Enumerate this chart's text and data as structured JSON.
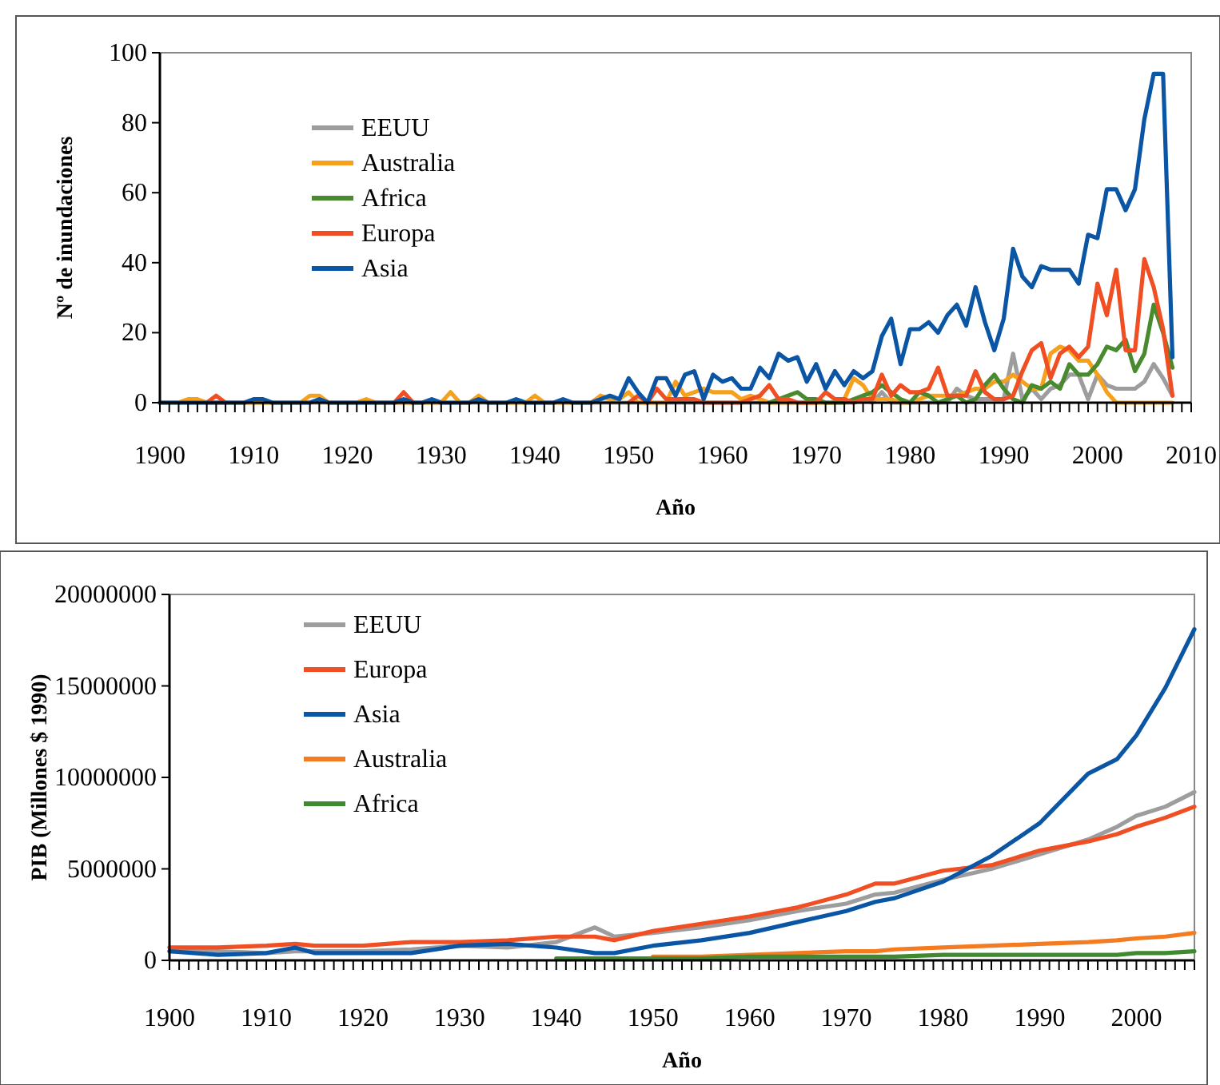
{
  "chart_data": [
    {
      "type": "line",
      "xlabel": "Año",
      "ylabel": "Nº de inundaciones",
      "legend": "top left",
      "grid": false,
      "marker": "none",
      "line_style": "solid",
      "x": [
        1900,
        1901,
        1902,
        1903,
        1904,
        1905,
        1906,
        1907,
        1908,
        1909,
        1910,
        1911,
        1912,
        1913,
        1914,
        1915,
        1916,
        1917,
        1918,
        1919,
        1920,
        1921,
        1922,
        1923,
        1924,
        1925,
        1926,
        1927,
        1928,
        1929,
        1930,
        1931,
        1932,
        1933,
        1934,
        1935,
        1936,
        1937,
        1938,
        1939,
        1940,
        1941,
        1942,
        1943,
        1944,
        1945,
        1946,
        1947,
        1948,
        1949,
        1950,
        1951,
        1952,
        1953,
        1954,
        1955,
        1956,
        1957,
        1958,
        1959,
        1960,
        1961,
        1962,
        1963,
        1964,
        1965,
        1966,
        1967,
        1968,
        1969,
        1970,
        1971,
        1972,
        1973,
        1974,
        1975,
        1976,
        1977,
        1978,
        1979,
        1980,
        1981,
        1982,
        1983,
        1984,
        1985,
        1986,
        1987,
        1988,
        1989,
        1990,
        1991,
        1992,
        1993,
        1994,
        1995,
        1996,
        1997,
        1998,
        1999,
        2000,
        2001,
        2002,
        2003,
        2004,
        2005,
        2006,
        2007,
        2008
      ],
      "xlim": [
        1900,
        2010
      ],
      "xticks": [
        1900,
        {
          "value": 1901,
          "label": null
        },
        {
          "value": 1902,
          "label": null
        },
        {
          "value": 1903,
          "label": null
        },
        {
          "value": 1904,
          "label": null
        },
        {
          "value": 1905,
          "label": null
        },
        {
          "value": 1906,
          "label": null
        },
        {
          "value": 1907,
          "label": null
        },
        {
          "value": 1908,
          "label": null
        },
        {
          "value": 1909,
          "label": null
        },
        1910,
        {
          "value": 1911,
          "label": null
        },
        {
          "value": 1912,
          "label": null
        },
        {
          "value": 1913,
          "label": null
        },
        {
          "value": 1914,
          "label": null
        },
        {
          "value": 1915,
          "label": null
        },
        {
          "value": 1916,
          "label": null
        },
        {
          "value": 1917,
          "label": null
        },
        {
          "value": 1918,
          "label": null
        },
        {
          "value": 1919,
          "label": null
        },
        1920,
        {
          "value": 1921,
          "label": null
        },
        {
          "value": 1922,
          "label": null
        },
        {
          "value": 1923,
          "label": null
        },
        {
          "value": 1924,
          "label": null
        },
        {
          "value": 1925,
          "label": null
        },
        {
          "value": 1926,
          "label": null
        },
        {
          "value": 1927,
          "label": null
        },
        {
          "value": 1928,
          "label": null
        },
        {
          "value": 1929,
          "label": null
        },
        1930,
        {
          "value": 1931,
          "label": null
        },
        {
          "value": 1932,
          "label": null
        },
        {
          "value": 1933,
          "label": null
        },
        {
          "value": 1934,
          "label": null
        },
        {
          "value": 1935,
          "label": null
        },
        {
          "value": 1936,
          "label": null
        },
        {
          "value": 1937,
          "label": null
        },
        {
          "value": 1938,
          "label": null
        },
        {
          "value": 1939,
          "label": null
        },
        1940,
        {
          "value": 1941,
          "label": null
        },
        {
          "value": 1942,
          "label": null
        },
        {
          "value": 1943,
          "label": null
        },
        {
          "value": 1944,
          "label": null
        },
        {
          "value": 1945,
          "label": null
        },
        {
          "value": 1946,
          "label": null
        },
        {
          "value": 1947,
          "label": null
        },
        {
          "value": 1948,
          "label": null
        },
        {
          "value": 1949,
          "label": null
        },
        1950,
        {
          "value": 1951,
          "label": null
        },
        {
          "value": 1952,
          "label": null
        },
        {
          "value": 1953,
          "label": null
        },
        {
          "value": 1954,
          "label": null
        },
        {
          "value": 1955,
          "label": null
        },
        {
          "value": 1956,
          "label": null
        },
        {
          "value": 1957,
          "label": null
        },
        {
          "value": 1958,
          "label": null
        },
        {
          "value": 1959,
          "label": null
        },
        1960,
        {
          "value": 1961,
          "label": null
        },
        {
          "value": 1962,
          "label": null
        },
        {
          "value": 1963,
          "label": null
        },
        {
          "value": 1964,
          "label": null
        },
        {
          "value": 1965,
          "label": null
        },
        {
          "value": 1966,
          "label": null
        },
        {
          "value": 1967,
          "label": null
        },
        {
          "value": 1968,
          "label": null
        },
        {
          "value": 1969,
          "label": null
        },
        1970,
        {
          "value": 1971,
          "label": null
        },
        {
          "value": 1972,
          "label": null
        },
        {
          "value": 1973,
          "label": null
        },
        {
          "value": 1974,
          "label": null
        },
        {
          "value": 1975,
          "label": null
        },
        {
          "value": 1976,
          "label": null
        },
        {
          "value": 1977,
          "label": null
        },
        {
          "value": 1978,
          "label": null
        },
        {
          "value": 1979,
          "label": null
        },
        1980,
        {
          "value": 1981,
          "label": null
        },
        {
          "value": 1982,
          "label": null
        },
        {
          "value": 1983,
          "label": null
        },
        {
          "value": 1984,
          "label": null
        },
        {
          "value": 1985,
          "label": null
        },
        {
          "value": 1986,
          "label": null
        },
        {
          "value": 1987,
          "label": null
        },
        {
          "value": 1988,
          "label": null
        },
        {
          "value": 1989,
          "label": null
        },
        1990,
        {
          "value": 1991,
          "label": null
        },
        {
          "value": 1992,
          "label": null
        },
        {
          "value": 1993,
          "label": null
        },
        {
          "value": 1994,
          "label": null
        },
        {
          "value": 1995,
          "label": null
        },
        {
          "value": 1996,
          "label": null
        },
        {
          "value": 1997,
          "label": null
        },
        {
          "value": 1998,
          "label": null
        },
        {
          "value": 1999,
          "label": null
        },
        2000,
        {
          "value": 2001,
          "label": null
        },
        {
          "value": 2002,
          "label": null
        },
        {
          "value": 2003,
          "label": null
        },
        {
          "value": 2004,
          "label": null
        },
        {
          "value": 2005,
          "label": null
        },
        {
          "value": 2006,
          "label": null
        },
        {
          "value": 2007,
          "label": null
        },
        {
          "value": 2008,
          "label": null
        },
        {
          "value": 2009,
          "label": null
        },
        2010
      ],
      "ylim": [
        0,
        100
      ],
      "yticks": [
        0,
        20,
        40,
        60,
        80,
        100
      ],
      "series": [
        {
          "name": "EEUU",
          "color": "#9d9d9d",
          "values": [
            0,
            0,
            0,
            0,
            0,
            0,
            0,
            0,
            0,
            0,
            0,
            0,
            0,
            0,
            0,
            0,
            0,
            0,
            0,
            0,
            0,
            0,
            0,
            0,
            0,
            0,
            0,
            0,
            0,
            0,
            0,
            0,
            0,
            0,
            0,
            0,
            0,
            0,
            0,
            0,
            0,
            0,
            0,
            0,
            0,
            0,
            0,
            0,
            0,
            0,
            0,
            0,
            0,
            0,
            0,
            0,
            0,
            0,
            0,
            0,
            0,
            0,
            0,
            0,
            0,
            0,
            0,
            0,
            0,
            0,
            0,
            0,
            0,
            0,
            0,
            1,
            0,
            3,
            0,
            0,
            0,
            0,
            0,
            0,
            0,
            4,
            2,
            1,
            1,
            1,
            1,
            14,
            1,
            4,
            1,
            4,
            5,
            8,
            8,
            1,
            8,
            5,
            4,
            4,
            4,
            6,
            11,
            7,
            2
          ]
        },
        {
          "name": "Australia",
          "color": "#f7a01e",
          "values": [
            0,
            0,
            0,
            1,
            1,
            0,
            0,
            0,
            0,
            0,
            0,
            0,
            0,
            0,
            0,
            0,
            2,
            2,
            0,
            0,
            0,
            0,
            1,
            0,
            0,
            0,
            0,
            0,
            0,
            0,
            0,
            3,
            0,
            0,
            2,
            0,
            0,
            0,
            0,
            0,
            2,
            0,
            0,
            0,
            0,
            0,
            0,
            2,
            1,
            1,
            3,
            0,
            0,
            0,
            0,
            6,
            2,
            3,
            4,
            3,
            3,
            3,
            1,
            2,
            1,
            0,
            0,
            0,
            0,
            0,
            0,
            0,
            0,
            1,
            7,
            5,
            1,
            1,
            1,
            0,
            0,
            1,
            2,
            2,
            2,
            2,
            3,
            4,
            4,
            6,
            6,
            8,
            6,
            4,
            4,
            14,
            16,
            15,
            12,
            12,
            8,
            3,
            0,
            0,
            0,
            0,
            0,
            0,
            0
          ]
        },
        {
          "name": "Africa",
          "color": "#4a8a2e",
          "values": [
            null,
            null,
            null,
            null,
            null,
            null,
            null,
            null,
            null,
            null,
            null,
            null,
            null,
            null,
            null,
            null,
            null,
            null,
            null,
            null,
            null,
            null,
            null,
            null,
            null,
            null,
            null,
            null,
            null,
            null,
            null,
            null,
            null,
            null,
            null,
            null,
            null,
            null,
            null,
            null,
            null,
            null,
            null,
            null,
            null,
            null,
            null,
            null,
            null,
            null,
            null,
            null,
            null,
            null,
            null,
            null,
            null,
            null,
            null,
            null,
            null,
            null,
            null,
            null,
            null,
            0,
            1,
            2,
            3,
            1,
            1,
            0,
            0,
            0,
            1,
            2,
            3,
            5,
            3,
            1,
            0,
            3,
            2,
            0,
            1,
            2,
            0,
            1,
            5,
            8,
            4,
            1,
            0,
            5,
            4,
            6,
            4,
            11,
            8,
            8,
            11,
            16,
            15,
            18,
            9,
            14,
            28,
            20,
            10
          ]
        },
        {
          "name": "Europa",
          "color": "#f04e23",
          "values": [
            null,
            null,
            null,
            null,
            null,
            0,
            2,
            0,
            null,
            null,
            null,
            null,
            null,
            null,
            null,
            null,
            null,
            null,
            null,
            null,
            null,
            null,
            null,
            null,
            null,
            0,
            3,
            0,
            null,
            null,
            null,
            null,
            null,
            null,
            null,
            null,
            null,
            null,
            null,
            null,
            null,
            null,
            null,
            null,
            null,
            null,
            null,
            null,
            null,
            null,
            0,
            2,
            0,
            4,
            1,
            1,
            1,
            1,
            0,
            0,
            0,
            0,
            0,
            1,
            2,
            5,
            1,
            1,
            0,
            0,
            0,
            3,
            1,
            1,
            0,
            1,
            1,
            8,
            2,
            5,
            3,
            3,
            4,
            10,
            2,
            2,
            2,
            9,
            3,
            1,
            1,
            2,
            9,
            15,
            17,
            7,
            14,
            16,
            13,
            16,
            34,
            25,
            38,
            15,
            15,
            41,
            33,
            21,
            2
          ]
        },
        {
          "name": "Asia",
          "color": "#0b55a5",
          "values": [
            0,
            0,
            0,
            0,
            0,
            0,
            0,
            0,
            0,
            0,
            1,
            1,
            0,
            0,
            0,
            0,
            0,
            1,
            0,
            0,
            0,
            0,
            0,
            0,
            0,
            0,
            1,
            0,
            0,
            1,
            0,
            0,
            0,
            0,
            1,
            0,
            0,
            0,
            1,
            0,
            0,
            0,
            0,
            1,
            0,
            0,
            0,
            1,
            2,
            1,
            7,
            3,
            0,
            7,
            7,
            2,
            8,
            9,
            1,
            8,
            6,
            7,
            4,
            4,
            10,
            7,
            14,
            12,
            13,
            6,
            11,
            4,
            9,
            5,
            9,
            7,
            9,
            19,
            24,
            11,
            21,
            21,
            23,
            20,
            25,
            28,
            22,
            33,
            23,
            15,
            24,
            44,
            36,
            33,
            39,
            38,
            38,
            38,
            34,
            48,
            47,
            61,
            61,
            55,
            61,
            81,
            94,
            94,
            13
          ]
        }
      ]
    },
    {
      "type": "line",
      "xlabel": "Año",
      "ylabel": "PIB (Millones $ 1990)",
      "legend": "top left",
      "grid": false,
      "marker": "none",
      "line_style": "solid",
      "x": [
        1900,
        1905,
        1910,
        1913,
        1915,
        1920,
        1925,
        1930,
        1935,
        1940,
        1944,
        1946,
        1950,
        1955,
        1960,
        1965,
        1970,
        1973,
        1975,
        1980,
        1985,
        1990,
        1995,
        1998,
        2000,
        2003,
        2006
      ],
      "xlim": [
        1900,
        2006
      ],
      "xticks": [
        1900,
        {
          "value": 1901,
          "label": null
        },
        {
          "value": 1902,
          "label": null
        },
        {
          "value": 1903,
          "label": null
        },
        {
          "value": 1904,
          "label": null
        },
        {
          "value": 1905,
          "label": null
        },
        {
          "value": 1906,
          "label": null
        },
        {
          "value": 1907,
          "label": null
        },
        {
          "value": 1908,
          "label": null
        },
        {
          "value": 1909,
          "label": null
        },
        1910,
        {
          "value": 1911,
          "label": null
        },
        {
          "value": 1912,
          "label": null
        },
        {
          "value": 1913,
          "label": null
        },
        {
          "value": 1914,
          "label": null
        },
        {
          "value": 1915,
          "label": null
        },
        {
          "value": 1916,
          "label": null
        },
        {
          "value": 1917,
          "label": null
        },
        {
          "value": 1918,
          "label": null
        },
        {
          "value": 1919,
          "label": null
        },
        1920,
        {
          "value": 1921,
          "label": null
        },
        {
          "value": 1922,
          "label": null
        },
        {
          "value": 1923,
          "label": null
        },
        {
          "value": 1924,
          "label": null
        },
        {
          "value": 1925,
          "label": null
        },
        {
          "value": 1926,
          "label": null
        },
        {
          "value": 1927,
          "label": null
        },
        {
          "value": 1928,
          "label": null
        },
        {
          "value": 1929,
          "label": null
        },
        1930,
        {
          "value": 1931,
          "label": null
        },
        {
          "value": 1932,
          "label": null
        },
        {
          "value": 1933,
          "label": null
        },
        {
          "value": 1934,
          "label": null
        },
        {
          "value": 1935,
          "label": null
        },
        {
          "value": 1936,
          "label": null
        },
        {
          "value": 1937,
          "label": null
        },
        {
          "value": 1938,
          "label": null
        },
        {
          "value": 1939,
          "label": null
        },
        1940,
        {
          "value": 1941,
          "label": null
        },
        {
          "value": 1942,
          "label": null
        },
        {
          "value": 1943,
          "label": null
        },
        {
          "value": 1944,
          "label": null
        },
        {
          "value": 1945,
          "label": null
        },
        {
          "value": 1946,
          "label": null
        },
        {
          "value": 1947,
          "label": null
        },
        {
          "value": 1948,
          "label": null
        },
        {
          "value": 1949,
          "label": null
        },
        1950,
        {
          "value": 1951,
          "label": null
        },
        {
          "value": 1952,
          "label": null
        },
        {
          "value": 1953,
          "label": null
        },
        {
          "value": 1954,
          "label": null
        },
        {
          "value": 1955,
          "label": null
        },
        {
          "value": 1956,
          "label": null
        },
        {
          "value": 1957,
          "label": null
        },
        {
          "value": 1958,
          "label": null
        },
        {
          "value": 1959,
          "label": null
        },
        1960,
        {
          "value": 1961,
          "label": null
        },
        {
          "value": 1962,
          "label": null
        },
        {
          "value": 1963,
          "label": null
        },
        {
          "value": 1964,
          "label": null
        },
        {
          "value": 1965,
          "label": null
        },
        {
          "value": 1966,
          "label": null
        },
        {
          "value": 1967,
          "label": null
        },
        {
          "value": 1968,
          "label": null
        },
        {
          "value": 1969,
          "label": null
        },
        1970,
        {
          "value": 1971,
          "label": null
        },
        {
          "value": 1972,
          "label": null
        },
        {
          "value": 1973,
          "label": null
        },
        {
          "value": 1974,
          "label": null
        },
        {
          "value": 1975,
          "label": null
        },
        {
          "value": 1976,
          "label": null
        },
        {
          "value": 1977,
          "label": null
        },
        {
          "value": 1978,
          "label": null
        },
        {
          "value": 1979,
          "label": null
        },
        1980,
        {
          "value": 1981,
          "label": null
        },
        {
          "value": 1982,
          "label": null
        },
        {
          "value": 1983,
          "label": null
        },
        {
          "value": 1984,
          "label": null
        },
        {
          "value": 1985,
          "label": null
        },
        {
          "value": 1986,
          "label": null
        },
        {
          "value": 1987,
          "label": null
        },
        {
          "value": 1988,
          "label": null
        },
        {
          "value": 1989,
          "label": null
        },
        1990,
        {
          "value": 1991,
          "label": null
        },
        {
          "value": 1992,
          "label": null
        },
        {
          "value": 1993,
          "label": null
        },
        {
          "value": 1994,
          "label": null
        },
        {
          "value": 1995,
          "label": null
        },
        {
          "value": 1996,
          "label": null
        },
        {
          "value": 1997,
          "label": null
        },
        {
          "value": 1998,
          "label": null
        },
        {
          "value": 1999,
          "label": null
        },
        2000,
        {
          "value": 2001,
          "label": null
        },
        {
          "value": 2002,
          "label": null
        },
        {
          "value": 2003,
          "label": null
        },
        {
          "value": 2004,
          "label": null
        },
        {
          "value": 2005,
          "label": null
        },
        {
          "value": 2006,
          "label": null
        }
      ],
      "ylim": [
        0,
        20000000
      ],
      "yticks": [
        0,
        5000000,
        10000000,
        15000000,
        20000000
      ],
      "series": [
        {
          "name": "EEUU",
          "color": "#9d9d9d",
          "values": [
            500000,
            500000,
            400000,
            500000,
            500000,
            500000,
            600000,
            800000,
            700000,
            1000000,
            1800000,
            1300000,
            1500000,
            1800000,
            2200000,
            2700000,
            3100000,
            3600000,
            3700000,
            4400000,
            5000000,
            5800000,
            6600000,
            7300000,
            7900000,
            8400000,
            9200000
          ]
        },
        {
          "name": "Europa",
          "color": "#f04e23",
          "values": [
            700000,
            700000,
            800000,
            900000,
            800000,
            800000,
            1000000,
            1000000,
            1100000,
            1300000,
            1300000,
            1100000,
            1600000,
            2000000,
            2400000,
            2900000,
            3600000,
            4200000,
            4200000,
            4900000,
            5200000,
            6000000,
            6500000,
            6900000,
            7300000,
            7800000,
            8400000
          ]
        },
        {
          "name": "Asia",
          "color": "#0b55a5",
          "values": [
            500000,
            300000,
            400000,
            700000,
            400000,
            400000,
            400000,
            800000,
            900000,
            700000,
            400000,
            400000,
            800000,
            1100000,
            1500000,
            2100000,
            2700000,
            3200000,
            3400000,
            4300000,
            5700000,
            7500000,
            10200000,
            11000000,
            12300000,
            14900000,
            18100000
          ]
        },
        {
          "name": "Australia",
          "color": "#f47b20",
          "values": [
            null,
            null,
            null,
            null,
            null,
            null,
            null,
            null,
            null,
            null,
            null,
            null,
            200000,
            200000,
            300000,
            400000,
            500000,
            500000,
            600000,
            700000,
            800000,
            900000,
            1000000,
            1100000,
            1200000,
            1300000,
            1500000
          ]
        },
        {
          "name": "Africa",
          "color": "#3f8a30",
          "values": [
            null,
            null,
            null,
            null,
            null,
            null,
            null,
            null,
            null,
            100000,
            100000,
            100000,
            100000,
            100000,
            200000,
            200000,
            200000,
            200000,
            200000,
            300000,
            300000,
            300000,
            300000,
            300000,
            400000,
            400000,
            500000
          ]
        }
      ]
    }
  ]
}
